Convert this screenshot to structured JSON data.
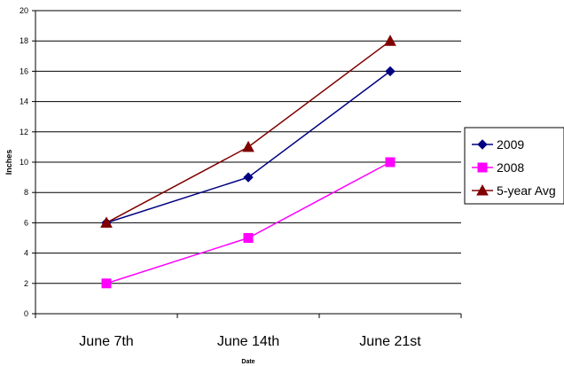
{
  "chart_data": {
    "type": "line",
    "title": "",
    "xlabel": "Date",
    "ylabel": "Inches",
    "ylim": [
      0,
      20
    ],
    "ytick_step": 2,
    "grid": true,
    "legend_position": "right",
    "categories": [
      "June 7th",
      "June 14th",
      "June 21st"
    ],
    "series": [
      {
        "name": "2009",
        "values": [
          6,
          9,
          16
        ],
        "color": "#000080",
        "marker": "diamond"
      },
      {
        "name": "2008",
        "values": [
          2,
          5,
          10
        ],
        "color": "#FF00FF",
        "marker": "square"
      },
      {
        "name": "5-year Avg",
        "values": [
          6,
          11,
          18
        ],
        "color": "#800000",
        "marker": "triangle"
      }
    ]
  }
}
